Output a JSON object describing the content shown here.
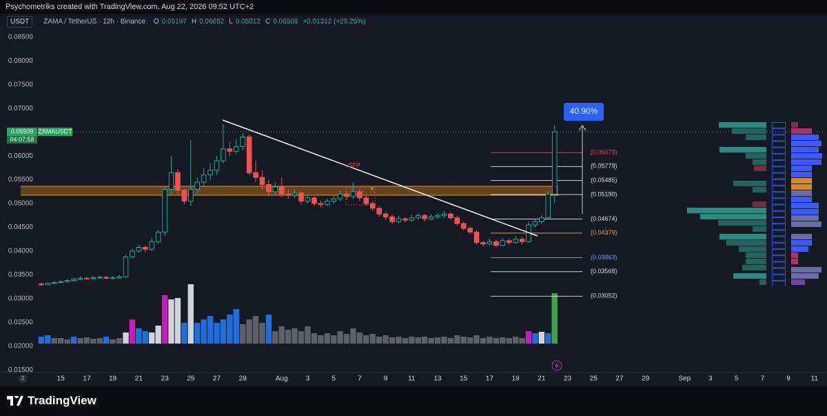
{
  "header_note": "Psychometriks created with TradingView.com, Aug 22, 2026 09:52 UTC+2",
  "brand": "TradingView",
  "chart_data": {
    "type": "candlestick",
    "currency": "USDT",
    "title": "ZAMA / TetherUS · 12h · Binance",
    "ohlc_labels": [
      "O",
      "H",
      "L",
      "C"
    ],
    "change": "+0.01312 (+25.25%)",
    "symbol": "ZAMAUSDT",
    "countdown": "04:07:58",
    "time_badge": "2",
    "up_color": "#26a69a",
    "down_color": "#ef5350",
    "opens": [
      0.0331,
      0.0329,
      0.0332,
      0.0334,
      0.0336,
      0.0338,
      0.0341,
      0.0343,
      0.0342,
      0.0344,
      0.0345,
      0.0343,
      0.0344,
      0.0346,
      0.0388,
      0.04,
      0.0408,
      0.0404,
      0.042,
      0.044,
      0.053,
      0.0565,
      0.0528,
      0.0505,
      0.053,
      0.0545,
      0.056,
      0.057,
      0.059,
      0.0615,
      0.061,
      0.062,
      0.064,
      0.0565,
      0.0555,
      0.054,
      0.0525,
      0.0535,
      0.052,
      0.0518,
      0.0522,
      0.0505,
      0.0512,
      0.05,
      0.0498,
      0.0505,
      0.051,
      0.052,
      0.0515,
      0.0525,
      0.0512,
      0.05,
      0.049,
      0.0478,
      0.0472,
      0.0462,
      0.0468,
      0.0465,
      0.047,
      0.0475,
      0.0468,
      0.0472,
      0.0475,
      0.0478,
      0.047,
      0.0458,
      0.0448,
      0.044,
      0.0418,
      0.0415,
      0.042,
      0.0412,
      0.0422,
      0.0418,
      0.0425,
      0.042,
      0.0455,
      0.0462,
      0.047,
      0.05197
    ],
    "highs": [
      0.0334,
      0.0334,
      0.0337,
      0.0339,
      0.0341,
      0.0344,
      0.0347,
      0.0346,
      0.0348,
      0.0349,
      0.0348,
      0.0347,
      0.035,
      0.0392,
      0.0405,
      0.0414,
      0.0412,
      0.0428,
      0.0445,
      0.0535,
      0.06,
      0.0572,
      0.0532,
      0.0633,
      0.0555,
      0.0575,
      0.0585,
      0.06,
      0.0667,
      0.063,
      0.0635,
      0.0648,
      0.0645,
      0.059,
      0.057,
      0.055,
      0.0545,
      0.0555,
      0.053,
      0.053,
      0.0528,
      0.0518,
      0.0515,
      0.0506,
      0.051,
      0.0516,
      0.0528,
      0.0526,
      0.0545,
      0.053,
      0.0516,
      0.0505,
      0.0495,
      0.0484,
      0.0477,
      0.0474,
      0.0472,
      0.0476,
      0.048,
      0.0478,
      0.0477,
      0.048,
      0.0485,
      0.0482,
      0.0474,
      0.0462,
      0.0452,
      0.0444,
      0.0422,
      0.0426,
      0.0424,
      0.0428,
      0.0426,
      0.0432,
      0.043,
      0.0462,
      0.0468,
      0.0476,
      0.0525,
      0.06652
    ],
    "lows": [
      0.0327,
      0.0328,
      0.033,
      0.0332,
      0.0334,
      0.0336,
      0.0339,
      0.0339,
      0.034,
      0.0342,
      0.0341,
      0.0341,
      0.0342,
      0.0344,
      0.0385,
      0.0396,
      0.0398,
      0.04,
      0.0415,
      0.0432,
      0.052,
      0.052,
      0.0498,
      0.0495,
      0.052,
      0.0535,
      0.055,
      0.056,
      0.0585,
      0.06,
      0.0605,
      0.0612,
      0.056,
      0.0545,
      0.053,
      0.0515,
      0.052,
      0.0512,
      0.051,
      0.0512,
      0.0498,
      0.05,
      0.0495,
      0.0492,
      0.0494,
      0.05,
      0.0505,
      0.0508,
      0.051,
      0.0505,
      0.0495,
      0.0485,
      0.0472,
      0.0466,
      0.0458,
      0.0458,
      0.046,
      0.0462,
      0.0466,
      0.0463,
      0.0465,
      0.0468,
      0.0471,
      0.0466,
      0.0454,
      0.0444,
      0.0436,
      0.0414,
      0.041,
      0.0412,
      0.0408,
      0.041,
      0.0414,
      0.0415,
      0.0414,
      0.0418,
      0.045,
      0.0458,
      0.0466,
      0.05012
    ],
    "closes": [
      0.0329,
      0.0332,
      0.0334,
      0.0336,
      0.0338,
      0.0341,
      0.0343,
      0.0342,
      0.0344,
      0.0345,
      0.0343,
      0.0344,
      0.0346,
      0.0388,
      0.04,
      0.0408,
      0.0404,
      0.042,
      0.044,
      0.053,
      0.0565,
      0.0528,
      0.0505,
      0.053,
      0.0545,
      0.056,
      0.057,
      0.059,
      0.0615,
      0.061,
      0.062,
      0.064,
      0.0565,
      0.0555,
      0.054,
      0.0525,
      0.0535,
      0.052,
      0.0518,
      0.0522,
      0.0505,
      0.0512,
      0.05,
      0.0498,
      0.0505,
      0.051,
      0.052,
      0.0515,
      0.0525,
      0.0512,
      0.05,
      0.049,
      0.0478,
      0.0472,
      0.0462,
      0.0468,
      0.0465,
      0.047,
      0.0475,
      0.0468,
      0.0472,
      0.0475,
      0.0478,
      0.047,
      0.0458,
      0.0448,
      0.044,
      0.0418,
      0.0415,
      0.042,
      0.0412,
      0.0422,
      0.0418,
      0.0425,
      0.042,
      0.0455,
      0.0462,
      0.047,
      0.05197,
      0.06509
    ],
    "volume": [
      10,
      12,
      8,
      8,
      6,
      10,
      8,
      9,
      7,
      8,
      10,
      6,
      8,
      16,
      35,
      22,
      18,
      16,
      26,
      70,
      64,
      66,
      30,
      86,
      30,
      35,
      40,
      30,
      35,
      42,
      50,
      28,
      35,
      40,
      30,
      42,
      18,
      25,
      20,
      22,
      18,
      25,
      15,
      12,
      15,
      12,
      18,
      14,
      22,
      16,
      12,
      14,
      10,
      12,
      9,
      10,
      8,
      10,
      9,
      10,
      8,
      9,
      10,
      8,
      12,
      10,
      9,
      12,
      8,
      10,
      8,
      9,
      8,
      10,
      8,
      18,
      15,
      17,
      15,
      73
    ],
    "volume_colors": [
      "#1e6fd9",
      "#1e6fd9",
      "#5d606b",
      "#5d606b",
      "#5d606b",
      "#1e6fd9",
      "#5d606b",
      "#5d606b",
      "#5d606b",
      "#5d606b",
      "#1e6fd9",
      "#5d606b",
      "#5d606b",
      "#d1d4dc",
      "#c41fbd",
      "#1e6fd9",
      "#1e6fd9",
      "#d1d4dc",
      "#d1d4dc",
      "#c41fbd",
      "#d1d4dc",
      "#d1d4dc",
      "#1e6fd9",
      "#d1d4dc",
      "#1e6fd9",
      "#1e6fd9",
      "#1e6fd9",
      "#1e6fd9",
      "#1e6fd9",
      "#1e6fd9",
      "#1e6fd9",
      "#5d606b",
      "#5d606b",
      "#5d606b",
      "#5d606b",
      "#1e6fd9",
      "#5d606b",
      "#5d606b",
      "#5d606b",
      "#5d606b",
      "#5d606b",
      "#5d606b",
      "#5d606b",
      "#5d606b",
      "#5d606b",
      "#5d606b",
      "#5d606b",
      "#5d606b",
      "#5d606b",
      "#5d606b",
      "#5d606b",
      "#5d606b",
      "#5d606b",
      "#5d606b",
      "#5d606b",
      "#5d606b",
      "#5d606b",
      "#5d606b",
      "#5d606b",
      "#5d606b",
      "#5d606b",
      "#5d606b",
      "#5d606b",
      "#5d606b",
      "#5d606b",
      "#5d606b",
      "#5d606b",
      "#5d606b",
      "#5d606b",
      "#5d606b",
      "#5d606b",
      "#5d606b",
      "#5d606b",
      "#5d606b",
      "#5d606b",
      "#c41fbd",
      "#1e6fd9",
      "#d1d4dc",
      "#1e6fd9",
      "#43a047"
    ],
    "xlim": [
      -5.3,
      120.4
    ],
    "xticks": [
      {
        "value": 3,
        "label": "15"
      },
      {
        "value": 7,
        "label": "17"
      },
      {
        "value": 11,
        "label": "19"
      },
      {
        "value": 15,
        "label": "21"
      },
      {
        "value": 19,
        "label": "23"
      },
      {
        "value": 23,
        "label": "25"
      },
      {
        "value": 27,
        "label": "27"
      },
      {
        "value": 31,
        "label": "29"
      },
      {
        "value": 37,
        "label": "Aug"
      },
      {
        "value": 41,
        "label": "3"
      },
      {
        "value": 45,
        "label": "5"
      },
      {
        "value": 49,
        "label": "7"
      },
      {
        "value": 53,
        "label": "9"
      },
      {
        "value": 57,
        "label": "11"
      },
      {
        "value": 61,
        "label": "13"
      },
      {
        "value": 65,
        "label": "15"
      },
      {
        "value": 69,
        "label": "17"
      },
      {
        "value": 73,
        "label": "19"
      },
      {
        "value": 77,
        "label": "21"
      },
      {
        "value": 81,
        "label": "23"
      },
      {
        "value": 85,
        "label": "25"
      },
      {
        "value": 89,
        "label": "27"
      },
      {
        "value": 93,
        "label": "29"
      },
      {
        "value": 99,
        "label": "Sep"
      },
      {
        "value": 103,
        "label": "3"
      },
      {
        "value": 107,
        "label": "5"
      },
      {
        "value": 111,
        "label": "7"
      },
      {
        "value": 115,
        "label": "9"
      },
      {
        "value": 119,
        "label": "11"
      }
    ],
    "ylim": [
      0.01447,
      0.0899
    ],
    "yticks": [
      {
        "value": 0.085,
        "label": "0.08500"
      },
      {
        "value": 0.08,
        "label": "0.08000"
      },
      {
        "value": 0.075,
        "label": "0.07500"
      },
      {
        "value": 0.07,
        "label": "0.07000"
      },
      {
        "value": 0.06,
        "label": "0.06000"
      },
      {
        "value": 0.055,
        "label": "0.05500"
      },
      {
        "value": 0.05,
        "label": "0.05000"
      },
      {
        "value": 0.045,
        "label": "0.04500"
      },
      {
        "value": 0.04,
        "label": "0.04000"
      },
      {
        "value": 0.035,
        "label": "0.03500"
      },
      {
        "value": 0.03,
        "label": "0.03000"
      },
      {
        "value": 0.025,
        "label": "0.02500"
      },
      {
        "value": 0.02,
        "label": "0.02000"
      },
      {
        "value": 0.015,
        "label": "0.01500"
      }
    ],
    "levels": [
      {
        "value": 0.06073,
        "label": "(0.06073)",
        "color": "#f23645"
      },
      {
        "value": 0.05779,
        "label": "(0.05779)",
        "color": "#d1d4dc"
      },
      {
        "value": 0.05485,
        "label": "(0.05485)",
        "color": "#d1d4dc"
      },
      {
        "value": 0.0519,
        "label": "(0.05190)",
        "color": "#d1d4dc"
      },
      {
        "value": 0.04674,
        "label": "(0.04674)",
        "color": "#d1d4dc"
      },
      {
        "value": 0.04379,
        "label": "(0.04379)",
        "color": "#f7931a"
      },
      {
        "value": 0.03863,
        "label": "(0.03863)",
        "color": "#5b9cf6"
      },
      {
        "value": 0.03568,
        "label": "(0.03568)",
        "color": "#d1d4dc"
      },
      {
        "value": 0.03052,
        "label": "(0.03052)",
        "color": "#d1d4dc"
      }
    ],
    "annotations": {
      "sfp": "SFP",
      "measure": "40.90%"
    }
  }
}
